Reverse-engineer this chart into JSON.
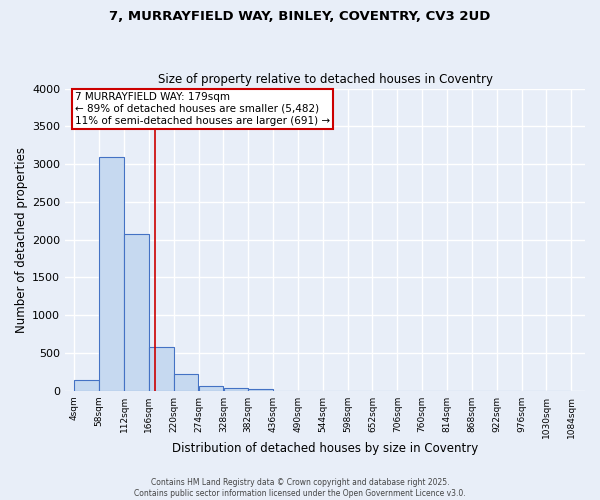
{
  "title_line1": "7, MURRAYFIELD WAY, BINLEY, COVENTRY, CV3 2UD",
  "title_line2": "Size of property relative to detached houses in Coventry",
  "xlabel": "Distribution of detached houses by size in Coventry",
  "ylabel": "Number of detached properties",
  "bar_values": [
    140,
    3100,
    2080,
    580,
    220,
    70,
    40,
    20,
    0,
    0,
    0,
    0,
    0,
    0,
    0,
    0,
    0,
    0,
    0,
    0
  ],
  "bin_edges": [
    4,
    58,
    112,
    166,
    220,
    274,
    328,
    382,
    436,
    490,
    544,
    598,
    652,
    706,
    760,
    814,
    868,
    922,
    976,
    1030,
    1084
  ],
  "tick_labels": [
    "4sqm",
    "58sqm",
    "112sqm",
    "166sqm",
    "220sqm",
    "274sqm",
    "328sqm",
    "382sqm",
    "436sqm",
    "490sqm",
    "544sqm",
    "598sqm",
    "652sqm",
    "706sqm",
    "760sqm",
    "814sqm",
    "868sqm",
    "922sqm",
    "976sqm",
    "1030sqm",
    "1084sqm"
  ],
  "bar_color": "#c6d9f0",
  "bar_edge_color": "#4472c4",
  "property_line_x": 179,
  "property_line_color": "#cc0000",
  "annotation_text": "7 MURRAYFIELD WAY: 179sqm\n← 89% of detached houses are smaller (5,482)\n11% of semi-detached houses are larger (691) →",
  "annotation_box_color": "#ffffff",
  "annotation_border_color": "#cc0000",
  "ylim": [
    0,
    4000
  ],
  "yticks": [
    0,
    500,
    1000,
    1500,
    2000,
    2500,
    3000,
    3500,
    4000
  ],
  "background_color": "#e8eef8",
  "grid_color": "#ffffff",
  "footer_line1": "Contains HM Land Registry data © Crown copyright and database right 2025.",
  "footer_line2": "Contains public sector information licensed under the Open Government Licence v3.0."
}
